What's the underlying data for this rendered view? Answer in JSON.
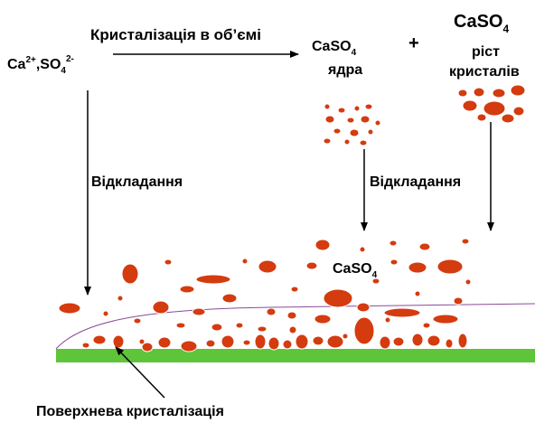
{
  "ions": {
    "ca": "Ca",
    "ca_charge": "2+",
    "so": ",SO",
    "so_sub": "4",
    "so_charge": "2-"
  },
  "volume_crystallization": "Кристалізація в об’ємі",
  "nuclei": {
    "formula": "CaSO",
    "sub": "4",
    "name": "ядра"
  },
  "plus": "+",
  "growth": {
    "formula": "CaSO",
    "sub": "4",
    "line1": "ріст",
    "line2": "кристалів"
  },
  "deposition_left": "Відкладання",
  "deposition_right": "Відкладання",
  "deposit": {
    "formula": "CaSO",
    "sub": "4"
  },
  "surface_crystallization": "Поверхнева кристалізація"
}
